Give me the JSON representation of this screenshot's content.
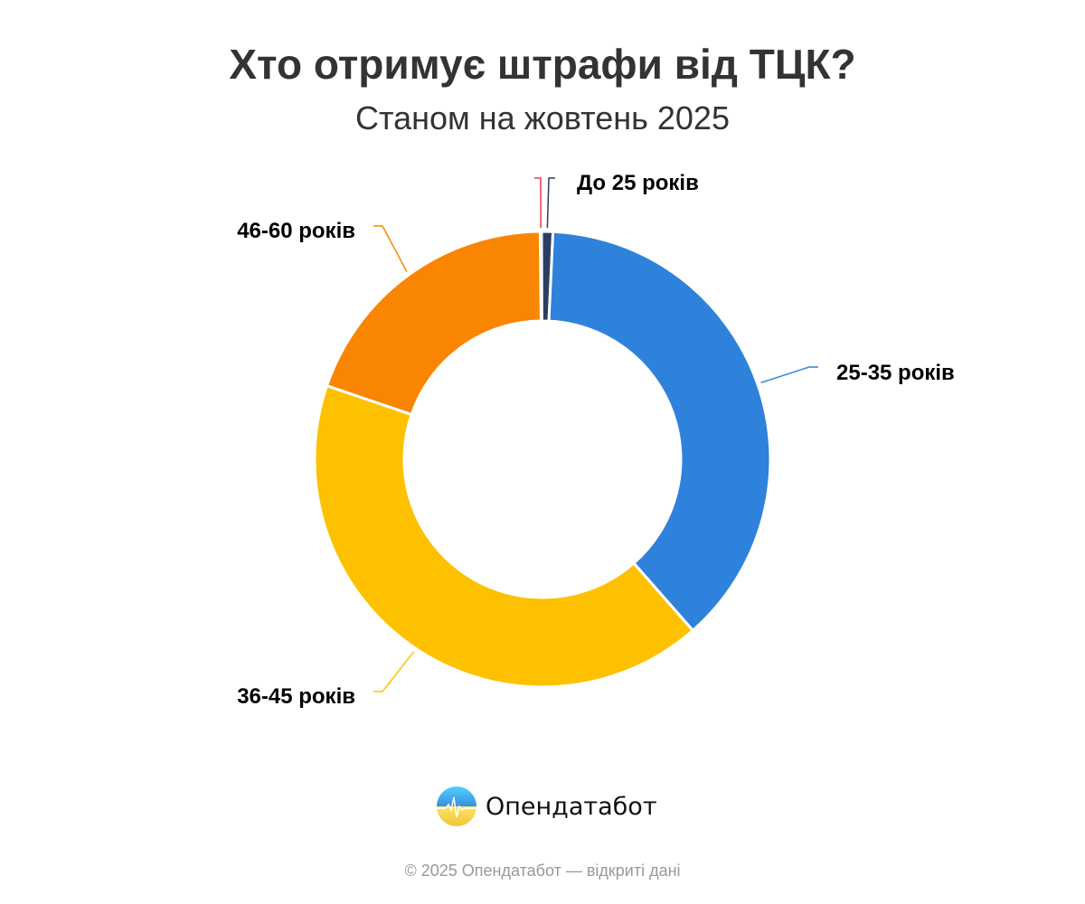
{
  "chart_data": {
    "type": "pie",
    "donut": true,
    "title": "Хто отримує штрафи від ТЦК?",
    "subtitle": "Станом на жовтень 2025",
    "unit": "%",
    "slices": [
      {
        "label": "",
        "value": 0.1,
        "color": "#e8394a"
      },
      {
        "label": "До 25 років",
        "value": 0.8,
        "color": "#2c3e5f"
      },
      {
        "label": "25-35 років",
        "value": 37.8,
        "color": "#2e82db"
      },
      {
        "label": "36-45 років",
        "value": 41.7,
        "color": "#fdc100"
      },
      {
        "label": "46-60 років",
        "value": 19.6,
        "color": "#fa8500"
      }
    ],
    "legend": "none"
  },
  "brand": {
    "name": "Опендатабот",
    "logo_icon": "opendatabot-logo-icon"
  },
  "footer": "© 2025 Опендатабот — відкриті дані"
}
